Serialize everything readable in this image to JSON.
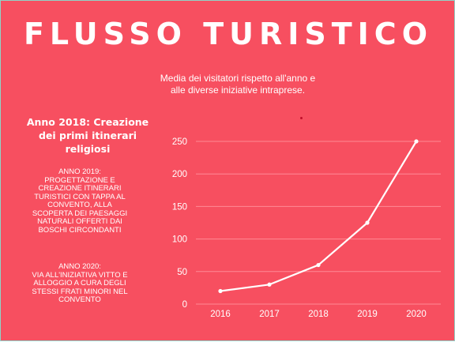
{
  "title": "FLUSSO TURISTICO",
  "subtitle": "Media dei visitatori rispetto all'anno e alle diverse iniziative intraprese.",
  "notes": {
    "anno_2018": "Anno 2018: Creazione dei primi itinerari religiosi",
    "anno_2019": "ANNO 2019:\nPROGETTAZIONE E CREAZIONE ITINERARI TURISTICI CON TAPPA AL CONVENTO, ALLA SCOPERTA DEI PAESAGGI NATURALI OFFERTI DAI BOSCHI CIRCONDANTI",
    "anno_2020": "ANNO 2020:\nVIA ALL'INIZIATIVA VITTO E ALLOGGIO A CURA DEGLI STESSI FRATI MINORI NEL CONVENTO"
  },
  "colors": {
    "background": "#f74f60",
    "line": "#ffffff",
    "grid": "#ff8a95"
  },
  "chart_data": {
    "type": "line",
    "title": "Media dei visitatori rispetto all'anno e alle diverse iniziative intraprese.",
    "xlabel": "",
    "ylabel": "",
    "categories": [
      "2016",
      "2017",
      "2018",
      "2019",
      "2020"
    ],
    "series": [
      {
        "values": [
          20,
          30,
          60,
          125,
          250
        ]
      }
    ],
    "ylim": [
      0,
      250
    ],
    "yticks": [
      0,
      50,
      100,
      150,
      200,
      250
    ],
    "grid": true,
    "legend": "none"
  }
}
